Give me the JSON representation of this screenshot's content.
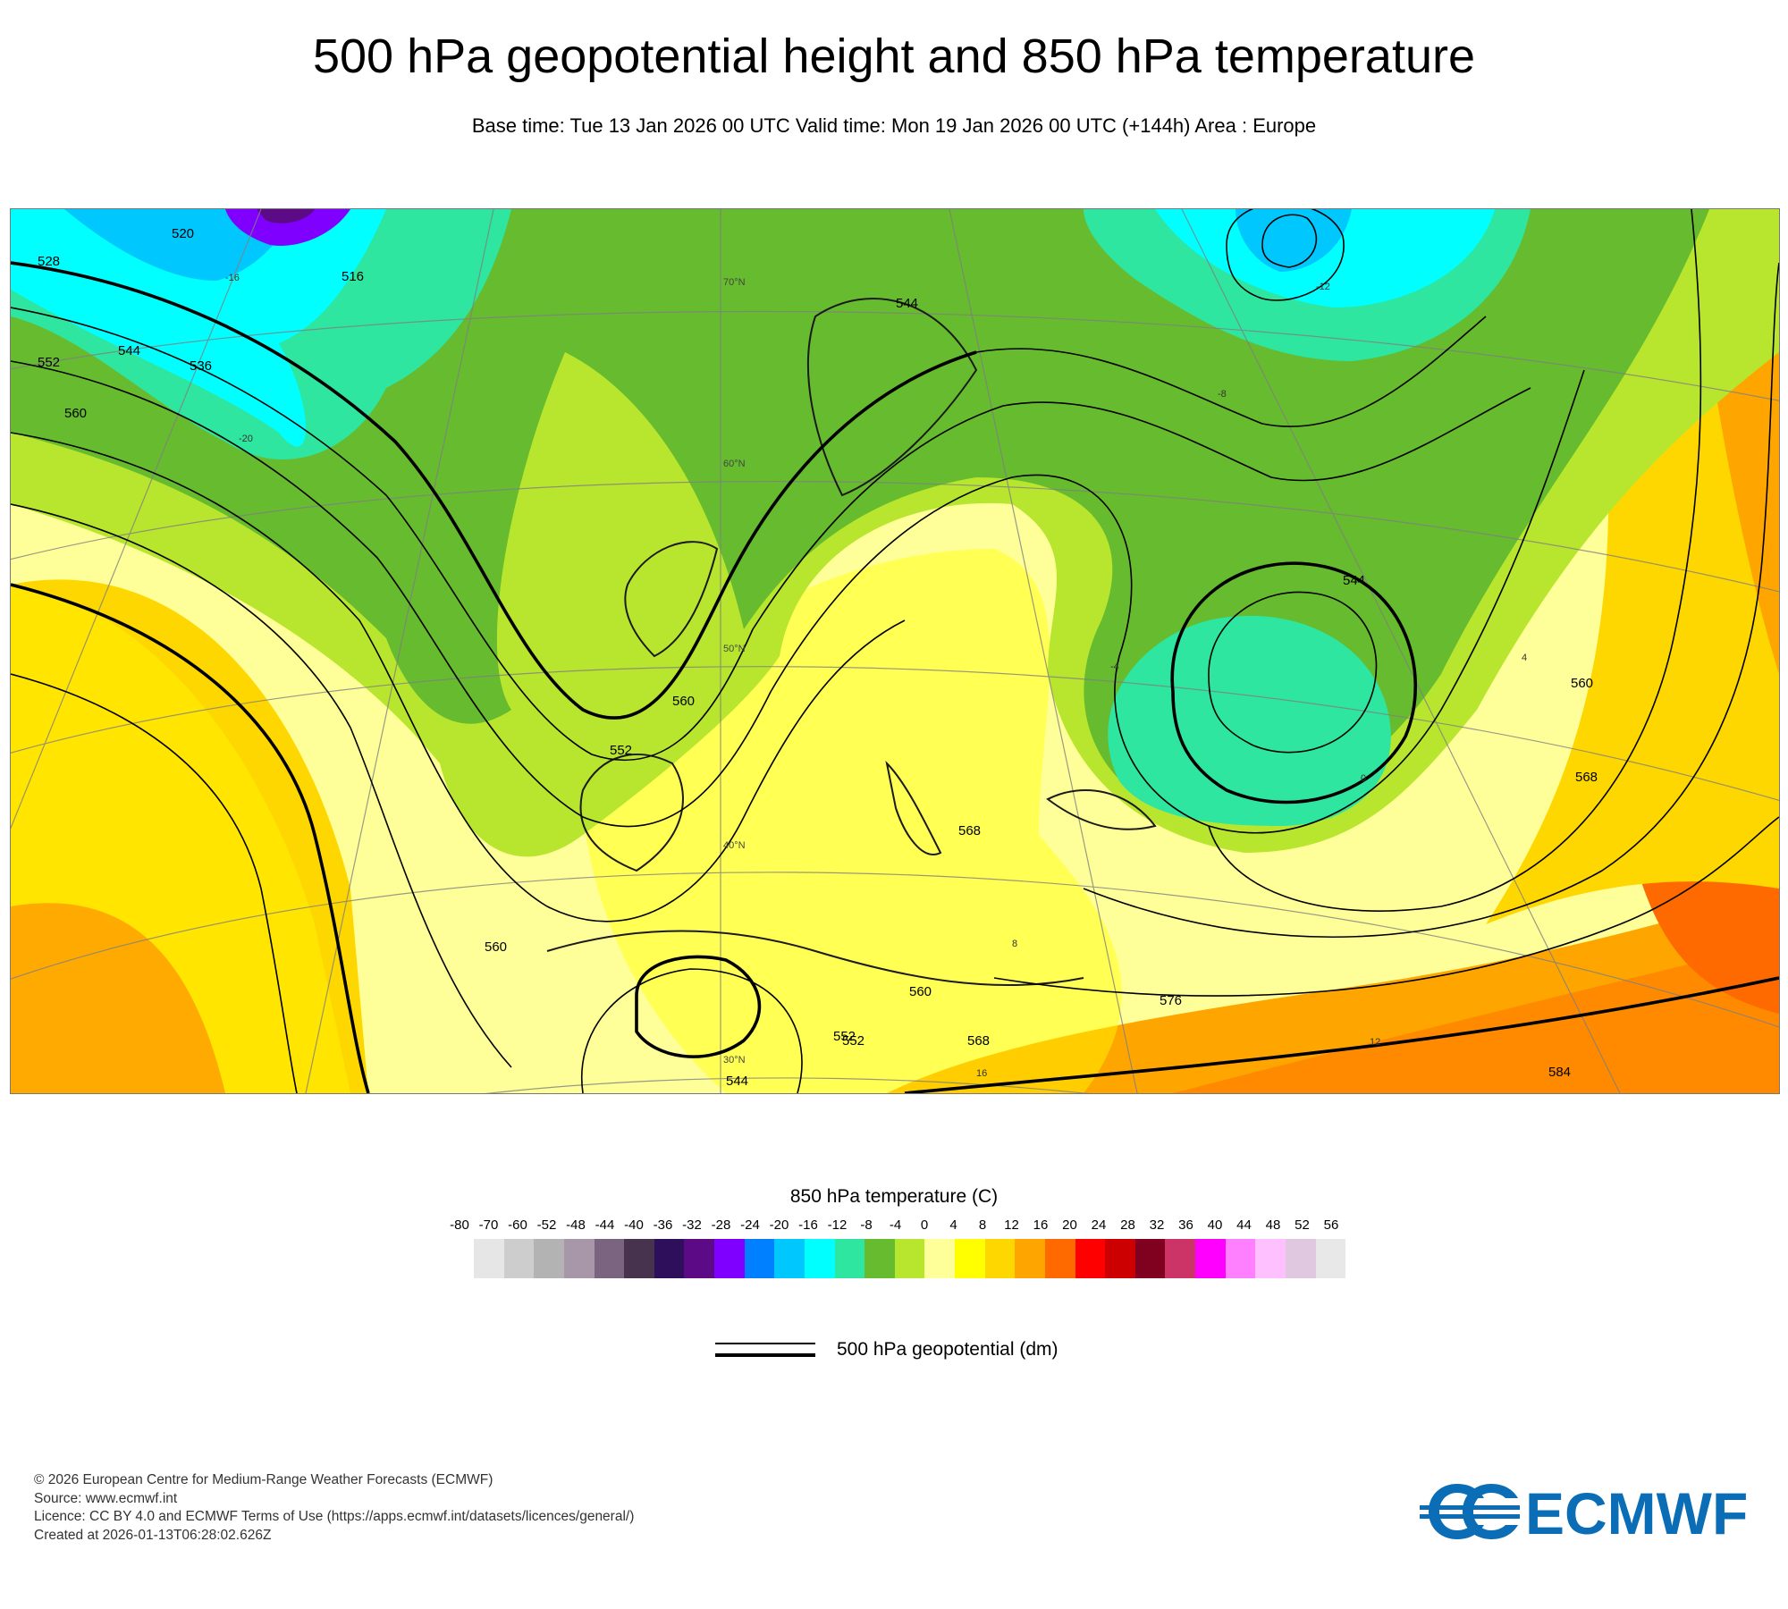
{
  "header": {
    "title": "500 hPa geopotential height and 850 hPa temperature",
    "subtitle": "Base time: Tue 13 Jan 2026 00 UTC Valid time: Mon 19 Jan 2026 00 UTC (+144h) Area : Europe"
  },
  "map": {
    "area": "Europe",
    "contour_labels": [
      "528",
      "520",
      "516",
      "536",
      "544",
      "552",
      "560",
      "552",
      "560",
      "544",
      "552",
      "560",
      "568",
      "576",
      "584",
      "560",
      "568",
      "544",
      "544",
      "552",
      "560",
      "568"
    ],
    "latitude_labels": [
      "70°N",
      "60°N",
      "50°N",
      "40°N",
      "30°N"
    ],
    "temperature_labels": [
      "-20",
      "-16",
      "-12",
      "-8",
      "-4",
      "0",
      "4",
      "8",
      "12",
      "16"
    ]
  },
  "legend": {
    "temperature_title": "850 hPa temperature (C)",
    "temperature_ticks": [
      "-80",
      "-70",
      "-60",
      "-52",
      "-48",
      "-44",
      "-40",
      "-36",
      "-32",
      "-28",
      "-24",
      "-20",
      "-16",
      "-12",
      "-8",
      "-4",
      "0",
      "4",
      "8",
      "12",
      "16",
      "20",
      "24",
      "28",
      "32",
      "36",
      "40",
      "44",
      "48",
      "52",
      "56"
    ],
    "temperature_colors": [
      "#e6e6e6",
      "#cdcdcd",
      "#b3b3b3",
      "#a897a8",
      "#7a6480",
      "#47334d",
      "#2e0f5c",
      "#5c0a85",
      "#8000ff",
      "#0080ff",
      "#00c8ff",
      "#00ffff",
      "#2ee6a0",
      "#66bb2e",
      "#b8e62e",
      "#ffff99",
      "#ffff00",
      "#ffd700",
      "#ffa500",
      "#ff6a00",
      "#ff0000",
      "#cc0000",
      "#800020",
      "#cc3366",
      "#ff00ff",
      "#ff80ff",
      "#ffc0ff",
      "#e0c8e0",
      "#e8e8e8"
    ],
    "geopotential_label": "500 hPa geopotential (dm)"
  },
  "footer": {
    "lines": [
      "© 2026 European Centre for Medium-Range Weather Forecasts (ECMWF)",
      "Source: www.ecmwf.int",
      "Licence: CC BY 4.0 and ECMWF Terms of Use (https://apps.ecmwf.int/datasets/licences/general/)",
      "Created at 2026-01-13T06:28:02.626Z"
    ],
    "logo_text": "ECMWF",
    "logo_color": "#0a6db5"
  }
}
